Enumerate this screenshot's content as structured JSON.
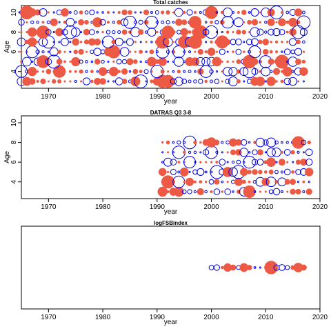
{
  "chart_data": [
    {
      "type": "scatter",
      "title": "Total catches",
      "xlabel": "year",
      "ylabel": "Age",
      "xlim": [
        1965,
        2020
      ],
      "ylim": [
        2.3,
        10.7
      ],
      "xticks": [
        1970,
        1980,
        1990,
        2000,
        2010,
        2020
      ],
      "yticks": [
        4,
        6,
        8,
        10
      ],
      "x_start": 1965,
      "x_end": 2017,
      "ages": [
        3,
        4,
        5,
        6,
        7,
        8,
        9,
        10
      ],
      "marker_style": "bubble: red filled = positive residual, blue open = negative residual",
      "colors": {
        "positive": "#ec5a45",
        "negative": "#0000e6"
      }
    },
    {
      "type": "scatter",
      "title": "DATRAS Q3 3-8",
      "xlabel": "year",
      "ylabel": "Age",
      "xlim": [
        1965,
        2020
      ],
      "ylim": [
        2.3,
        10.7
      ],
      "xticks": [
        1970,
        1980,
        1990,
        2000,
        2010,
        2020
      ],
      "yticks": [
        4,
        6,
        8,
        10
      ],
      "x_start": 1991,
      "x_end": 2018,
      "ages": [
        3,
        4,
        5,
        6,
        7,
        8
      ],
      "colors": {
        "positive": "#ec5a45",
        "negative": "#0000e6"
      }
    },
    {
      "type": "scatter",
      "title": "logFSBindex",
      "xlabel": "year",
      "ylabel": "",
      "xlim": [
        1965,
        2020
      ],
      "ylim": [
        0,
        1
      ],
      "xticks": [
        1970,
        1980,
        1990,
        2000,
        2010,
        2020
      ],
      "yticks": [],
      "x_start": 2000,
      "x_end": 2017,
      "ages": [
        0.5
      ],
      "colors": {
        "positive": "#ec5a45",
        "negative": "#0000e6"
      }
    }
  ]
}
